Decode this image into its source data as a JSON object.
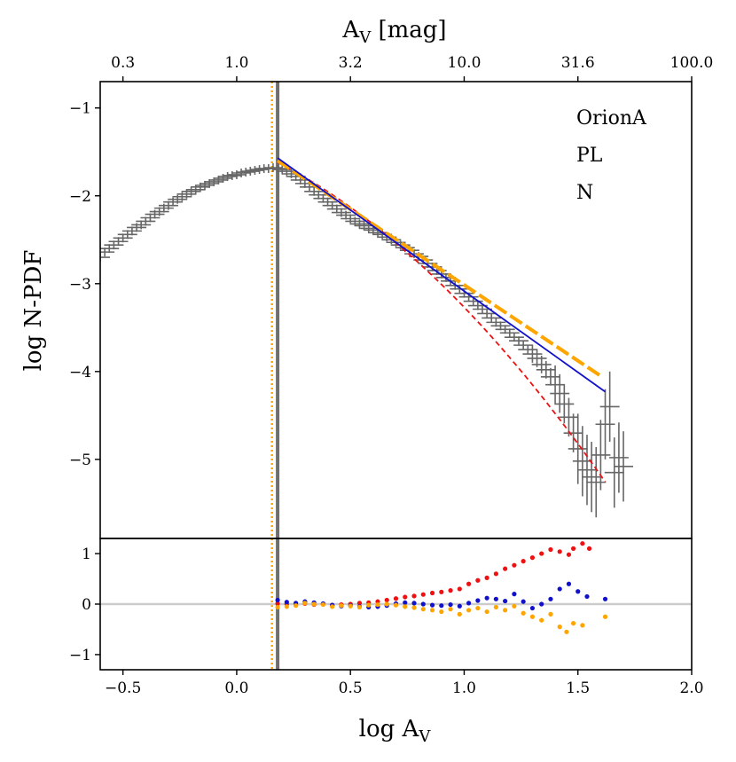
{
  "chart_data": {
    "type": "line",
    "title": "",
    "annotations": [
      "OrionA",
      "PL",
      "N"
    ],
    "top_axis": {
      "label_main": "A",
      "label_sub": "V",
      "label_rest": " [mag]",
      "tick_labels": [
        "0.3",
        "1.0",
        "3.2",
        "10.0",
        "31.6",
        "100.0"
      ],
      "tick_positions_logAv": [
        -0.5,
        0.0,
        0.5,
        1.0,
        1.5,
        2.0
      ]
    },
    "x_axis": {
      "label_main": "log A",
      "label_sub": "V",
      "xlim": [
        -0.6,
        2.0
      ],
      "ticks": [
        -0.5,
        0.0,
        0.5,
        1.0,
        1.5,
        2.0
      ],
      "tick_labels": [
        "−0.5",
        "0.0",
        "0.5",
        "1.0",
        "1.5",
        "2.0"
      ]
    },
    "main_panel": {
      "ylabel": "log N-PDF",
      "ylim": [
        -5.9,
        -0.7
      ],
      "yticks": [
        -1,
        -2,
        -3,
        -4,
        -5
      ],
      "ytick_labels": [
        "−1",
        "−2",
        "−3",
        "−4",
        "−5"
      ],
      "vlines": [
        {
          "name": "completeness-limit",
          "x": 0.18,
          "color": "#6e6e6e",
          "style": "solid"
        },
        {
          "name": "orange-threshold",
          "x": 0.155,
          "color": "#ffa500",
          "style": "dotted"
        }
      ],
      "npdf_points": [
        [
          -0.6,
          -2.7
        ],
        [
          -0.58,
          -2.64
        ],
        [
          -0.56,
          -2.6
        ],
        [
          -0.54,
          -2.56
        ],
        [
          -0.52,
          -2.52
        ],
        [
          -0.5,
          -2.48
        ],
        [
          -0.48,
          -2.44
        ],
        [
          -0.46,
          -2.4
        ],
        [
          -0.44,
          -2.36
        ],
        [
          -0.42,
          -2.33
        ],
        [
          -0.4,
          -2.29
        ],
        [
          -0.38,
          -2.25
        ],
        [
          -0.36,
          -2.21
        ],
        [
          -0.34,
          -2.18
        ],
        [
          -0.32,
          -2.14
        ],
        [
          -0.3,
          -2.11
        ],
        [
          -0.28,
          -2.07
        ],
        [
          -0.26,
          -2.04
        ],
        [
          -0.24,
          -2.01
        ],
        [
          -0.22,
          -1.98
        ],
        [
          -0.2,
          -1.95
        ],
        [
          -0.18,
          -1.93
        ],
        [
          -0.16,
          -1.9
        ],
        [
          -0.14,
          -1.88
        ],
        [
          -0.12,
          -1.86
        ],
        [
          -0.1,
          -1.84
        ],
        [
          -0.08,
          -1.82
        ],
        [
          -0.06,
          -1.8
        ],
        [
          -0.04,
          -1.78
        ],
        [
          -0.02,
          -1.77
        ],
        [
          0.0,
          -1.76
        ],
        [
          0.02,
          -1.74
        ],
        [
          0.04,
          -1.73
        ],
        [
          0.06,
          -1.72
        ],
        [
          0.08,
          -1.71
        ],
        [
          0.1,
          -1.7
        ],
        [
          0.12,
          -1.69
        ],
        [
          0.14,
          -1.69
        ],
        [
          0.16,
          -1.68
        ],
        [
          0.18,
          -1.69
        ],
        [
          0.2,
          -1.7
        ],
        [
          0.22,
          -1.72
        ],
        [
          0.24,
          -1.75
        ],
        [
          0.26,
          -1.78
        ],
        [
          0.28,
          -1.82
        ],
        [
          0.3,
          -1.86
        ],
        [
          0.32,
          -1.9
        ],
        [
          0.34,
          -1.95
        ],
        [
          0.36,
          -1.99
        ],
        [
          0.38,
          -2.03
        ],
        [
          0.4,
          -2.07
        ],
        [
          0.42,
          -2.11
        ],
        [
          0.44,
          -2.15
        ],
        [
          0.46,
          -2.19
        ],
        [
          0.48,
          -2.22
        ],
        [
          0.5,
          -2.26
        ],
        [
          0.52,
          -2.29
        ],
        [
          0.54,
          -2.32
        ],
        [
          0.56,
          -2.34
        ],
        [
          0.58,
          -2.37
        ],
        [
          0.6,
          -2.39
        ],
        [
          0.62,
          -2.42
        ],
        [
          0.64,
          -2.44
        ],
        [
          0.66,
          -2.47
        ],
        [
          0.68,
          -2.5
        ],
        [
          0.7,
          -2.53
        ],
        [
          0.72,
          -2.56
        ],
        [
          0.74,
          -2.59
        ],
        [
          0.76,
          -2.62
        ],
        [
          0.78,
          -2.66
        ],
        [
          0.8,
          -2.69
        ],
        [
          0.82,
          -2.73
        ],
        [
          0.84,
          -2.77
        ],
        [
          0.86,
          -2.81
        ],
        [
          0.88,
          -2.85
        ],
        [
          0.9,
          -2.89
        ],
        [
          0.92,
          -2.93
        ],
        [
          0.94,
          -2.97
        ],
        [
          0.96,
          -3.02
        ],
        [
          0.98,
          -3.06
        ],
        [
          1.0,
          -3.11
        ],
        [
          1.02,
          -3.15
        ],
        [
          1.04,
          -3.2
        ],
        [
          1.06,
          -3.25
        ],
        [
          1.08,
          -3.29
        ],
        [
          1.1,
          -3.34
        ],
        [
          1.12,
          -3.39
        ],
        [
          1.14,
          -3.44
        ],
        [
          1.16,
          -3.48
        ],
        [
          1.18,
          -3.52
        ],
        [
          1.2,
          -3.56
        ],
        [
          1.22,
          -3.61
        ],
        [
          1.24,
          -3.65
        ],
        [
          1.26,
          -3.7
        ],
        [
          1.28,
          -3.75
        ],
        [
          1.3,
          -3.8
        ],
        [
          1.32,
          -3.85
        ],
        [
          1.34,
          -3.92
        ],
        [
          1.36,
          -3.98
        ],
        [
          1.38,
          -4.06
        ],
        [
          1.4,
          -4.15
        ],
        [
          1.42,
          -4.25
        ],
        [
          1.44,
          -4.37
        ],
        [
          1.46,
          -4.52
        ],
        [
          1.48,
          -4.7
        ],
        [
          1.5,
          -4.88
        ],
        [
          1.52,
          -5.02
        ],
        [
          1.54,
          -5.12
        ],
        [
          1.56,
          -5.2
        ],
        [
          1.58,
          -5.26
        ],
        [
          1.6,
          -4.95
        ],
        [
          1.62,
          -4.6
        ],
        [
          1.64,
          -4.4
        ],
        [
          1.66,
          -5.15
        ],
        [
          1.68,
          -4.98
        ],
        [
          1.7,
          -5.08
        ]
      ],
      "lognormal_fit": {
        "name": "red-dashed-curve",
        "color": "#ee1111",
        "x_range": [
          0.18,
          1.62
        ],
        "quadratic": [
          -1.62,
          -1.33,
          -0.83
        ]
      },
      "powerlaw_blue": {
        "name": "blue-power-law",
        "color": "#1111cc",
        "x": [
          0.18,
          1.62
        ],
        "y": [
          -1.57,
          -4.23
        ]
      },
      "powerlaw_orange": {
        "name": "orange-power-law",
        "color": "#ffa500",
        "x": [
          0.18,
          1.6
        ],
        "y": [
          -1.6,
          -4.05
        ]
      }
    },
    "residual_panel": {
      "ylim": [
        -1.3,
        1.3
      ],
      "yticks": [
        1,
        0,
        -1
      ],
      "ytick_labels": [
        "1",
        "0",
        "−1"
      ],
      "zero_line_color": "#cccccc",
      "series": [
        {
          "name": "red-residuals",
          "color": "#ee1111",
          "points": [
            [
              0.18,
              0.01
            ],
            [
              0.22,
              0.0
            ],
            [
              0.26,
              -0.02
            ],
            [
              0.3,
              0.01
            ],
            [
              0.34,
              -0.01
            ],
            [
              0.38,
              0.0
            ],
            [
              0.42,
              -0.02
            ],
            [
              0.46,
              -0.01
            ],
            [
              0.5,
              0.0
            ],
            [
              0.54,
              0.02
            ],
            [
              0.58,
              0.03
            ],
            [
              0.62,
              0.05
            ],
            [
              0.66,
              0.08
            ],
            [
              0.7,
              0.11
            ],
            [
              0.74,
              0.14
            ],
            [
              0.78,
              0.16
            ],
            [
              0.82,
              0.19
            ],
            [
              0.86,
              0.22
            ],
            [
              0.9,
              0.24
            ],
            [
              0.94,
              0.27
            ],
            [
              0.98,
              0.3
            ],
            [
              1.02,
              0.4
            ],
            [
              1.06,
              0.47
            ],
            [
              1.1,
              0.52
            ],
            [
              1.14,
              0.6
            ],
            [
              1.18,
              0.7
            ],
            [
              1.22,
              0.77
            ],
            [
              1.26,
              0.85
            ],
            [
              1.3,
              0.92
            ],
            [
              1.34,
              1.0
            ],
            [
              1.38,
              1.08
            ],
            [
              1.42,
              1.04
            ],
            [
              1.46,
              0.98
            ],
            [
              1.48,
              1.1
            ],
            [
              1.52,
              1.2
            ],
            [
              1.55,
              1.1
            ]
          ]
        },
        {
          "name": "blue-residuals",
          "color": "#1111cc",
          "points": [
            [
              0.18,
              0.08
            ],
            [
              0.22,
              0.04
            ],
            [
              0.26,
              0.02
            ],
            [
              0.3,
              0.05
            ],
            [
              0.34,
              0.03
            ],
            [
              0.38,
              0.01
            ],
            [
              0.42,
              -0.02
            ],
            [
              0.46,
              -0.04
            ],
            [
              0.5,
              -0.03
            ],
            [
              0.54,
              -0.05
            ],
            [
              0.58,
              -0.06
            ],
            [
              0.62,
              -0.05
            ],
            [
              0.66,
              -0.03
            ],
            [
              0.7,
              0.01
            ],
            [
              0.74,
              0.03
            ],
            [
              0.78,
              0.02
            ],
            [
              0.82,
              0.0
            ],
            [
              0.86,
              -0.02
            ],
            [
              0.9,
              -0.03
            ],
            [
              0.94,
              -0.01
            ],
            [
              0.98,
              -0.04
            ],
            [
              1.02,
              0.02
            ],
            [
              1.06,
              0.07
            ],
            [
              1.1,
              0.12
            ],
            [
              1.14,
              0.1
            ],
            [
              1.18,
              0.06
            ],
            [
              1.22,
              0.2
            ],
            [
              1.26,
              0.05
            ],
            [
              1.3,
              -0.08
            ],
            [
              1.34,
              0.0
            ],
            [
              1.38,
              0.1
            ],
            [
              1.42,
              0.3
            ],
            [
              1.46,
              0.4
            ],
            [
              1.5,
              0.25
            ],
            [
              1.54,
              0.15
            ],
            [
              1.62,
              0.1
            ]
          ]
        },
        {
          "name": "orange-residuals",
          "color": "#ffa500",
          "points": [
            [
              0.18,
              -0.06
            ],
            [
              0.22,
              -0.05
            ],
            [
              0.26,
              -0.03
            ],
            [
              0.3,
              0.02
            ],
            [
              0.34,
              0.0
            ],
            [
              0.38,
              -0.01
            ],
            [
              0.42,
              -0.05
            ],
            [
              0.46,
              -0.03
            ],
            [
              0.5,
              -0.04
            ],
            [
              0.54,
              -0.06
            ],
            [
              0.58,
              -0.02
            ],
            [
              0.62,
              -0.01
            ],
            [
              0.66,
              0.0
            ],
            [
              0.7,
              -0.02
            ],
            [
              0.74,
              -0.05
            ],
            [
              0.78,
              -0.07
            ],
            [
              0.82,
              -0.1
            ],
            [
              0.86,
              -0.12
            ],
            [
              0.9,
              -0.15
            ],
            [
              0.94,
              -0.1
            ],
            [
              0.98,
              -0.2
            ],
            [
              1.02,
              -0.12
            ],
            [
              1.06,
              -0.08
            ],
            [
              1.1,
              -0.15
            ],
            [
              1.14,
              -0.06
            ],
            [
              1.18,
              -0.12
            ],
            [
              1.22,
              -0.04
            ],
            [
              1.26,
              -0.18
            ],
            [
              1.3,
              -0.25
            ],
            [
              1.34,
              -0.32
            ],
            [
              1.38,
              -0.2
            ],
            [
              1.42,
              -0.45
            ],
            [
              1.45,
              -0.55
            ],
            [
              1.48,
              -0.38
            ],
            [
              1.52,
              -0.42
            ],
            [
              1.62,
              -0.25
            ]
          ]
        }
      ]
    },
    "colors": {
      "errorbar": "#666666",
      "axes": "#000000"
    }
  }
}
